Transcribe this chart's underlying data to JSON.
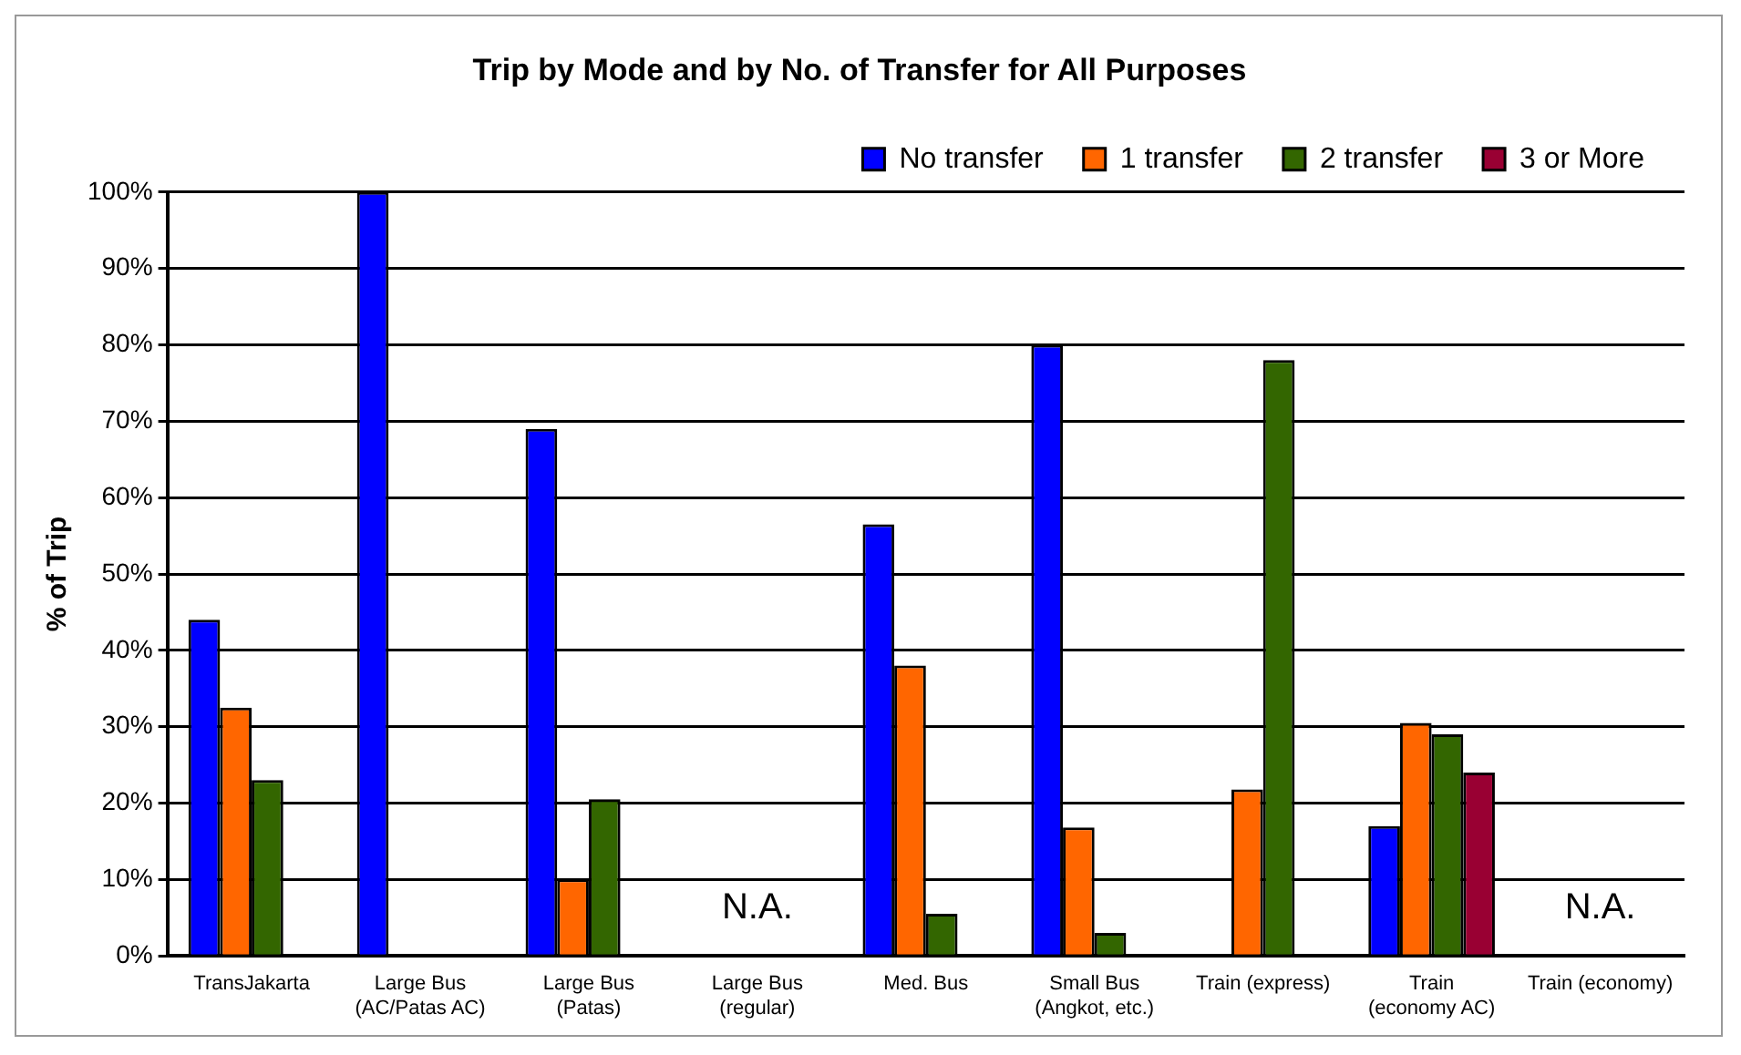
{
  "chart_data": {
    "type": "bar",
    "title": "Trip by Mode and by No. of Transfer for All Purposes",
    "ylabel": "% of Trip",
    "categories": [
      "TransJakarta",
      "Large Bus (AC/Patas AC)",
      "Large Bus (Patas)",
      "Large Bus (regular)",
      "Med. Bus",
      "Small Bus (Angkot, etc.)",
      "Train (express)",
      "Train (economy AC)",
      "Train (economy)"
    ],
    "series": [
      {
        "name": "No transfer",
        "color": "#0000ff",
        "values": [
          44,
          100,
          69,
          null,
          56.5,
          80,
          0,
          17,
          null
        ]
      },
      {
        "name": "1 transfer",
        "color": "#ff6600",
        "values": [
          32.5,
          0,
          10,
          null,
          38,
          16.8,
          21.8,
          30.5,
          null
        ]
      },
      {
        "name": "2 transfer",
        "color": "#336600",
        "values": [
          23,
          0,
          20.5,
          null,
          5.5,
          3,
          78,
          29,
          null
        ]
      },
      {
        "name": "3 or More",
        "color": "#990033",
        "values": [
          0,
          0,
          0,
          null,
          0,
          0,
          0,
          24,
          null
        ]
      }
    ],
    "ylim": [
      0,
      100
    ],
    "yticks": [
      {
        "value": 0,
        "label": "0%"
      },
      {
        "value": 10,
        "label": "10%"
      },
      {
        "value": 20,
        "label": "20%"
      },
      {
        "value": 30,
        "label": "30%"
      },
      {
        "value": 40,
        "label": "40%"
      },
      {
        "value": 50,
        "label": "50%"
      },
      {
        "value": 60,
        "label": "60%"
      },
      {
        "value": 70,
        "label": "70%"
      },
      {
        "value": 80,
        "label": "80%"
      },
      {
        "value": 90,
        "label": "90%"
      },
      {
        "value": 100,
        "label": "100%"
      }
    ],
    "annotations": [
      "N.A.",
      "N.A."
    ],
    "grid": "y",
    "legend": "top right"
  }
}
